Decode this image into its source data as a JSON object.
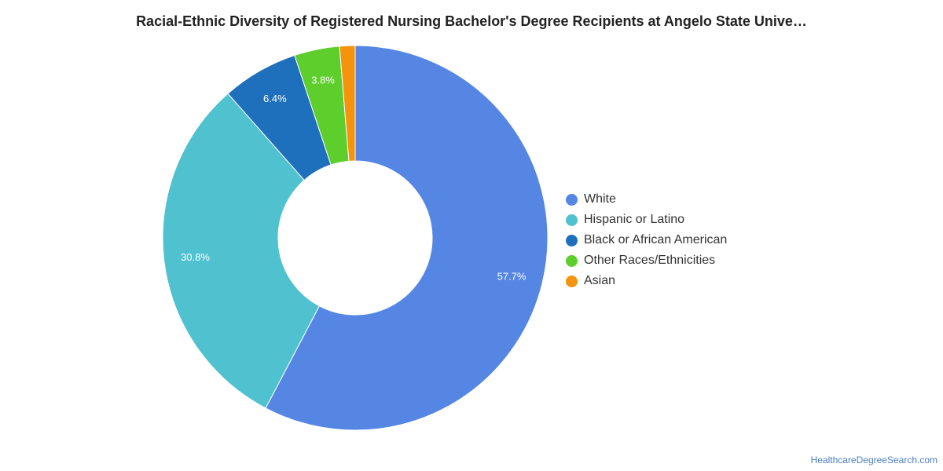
{
  "header": {
    "title": "Racial-Ethnic Diversity of Registered Nursing Bachelor's Degree Recipients at Angelo State Unive…"
  },
  "chart_data": {
    "type": "pie",
    "donut": true,
    "title": "Racial-Ethnic Diversity of Registered Nursing Bachelor's Degree Recipients at Angelo State Unive…",
    "legend_position": "right",
    "slices": [
      {
        "name": "White",
        "value": 57.7,
        "label": "57.7%",
        "color": "#5586e3"
      },
      {
        "name": "Hispanic or Latino",
        "value": 30.8,
        "label": "30.8%",
        "color": "#50c1cf"
      },
      {
        "name": "Black or African American",
        "value": 6.4,
        "label": "6.4%",
        "color": "#1f70bc"
      },
      {
        "name": "Other Races/Ethnicities",
        "value": 3.8,
        "label": "3.8%",
        "color": "#5ece2c"
      },
      {
        "name": "Asian",
        "value": 1.3,
        "label": "",
        "color": "#f5930c"
      }
    ]
  },
  "footer": {
    "credit": "HealthcareDegreeSearch.com"
  }
}
